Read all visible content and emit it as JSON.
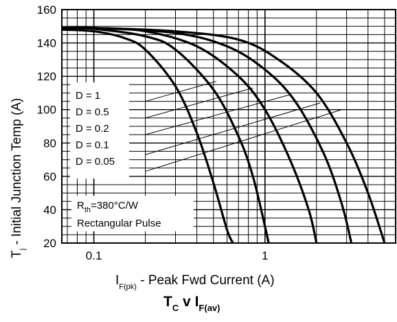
{
  "chart_data": {
    "type": "line",
    "x_scale": "log",
    "xlim": [
      0.065,
      5.8
    ],
    "ylim": [
      20,
      160
    ],
    "grid": true,
    "x_ticks": [
      {
        "value": 0.1,
        "label": "0.1"
      },
      {
        "value": 1,
        "label": "1"
      }
    ],
    "y_ticks": [
      {
        "value": 20,
        "label": "20"
      },
      {
        "value": 40,
        "label": "40"
      },
      {
        "value": 60,
        "label": "60"
      },
      {
        "value": 80,
        "label": "80"
      },
      {
        "value": 100,
        "label": "100"
      },
      {
        "value": 120,
        "label": "120"
      },
      {
        "value": 140,
        "label": "140"
      },
      {
        "value": 160,
        "label": "160"
      }
    ],
    "ylabel": {
      "main": "T",
      "sub": "j",
      "rest": " - Initial Junction Temp (A)"
    },
    "xlabel": {
      "main": "I",
      "sub": "F(pk)",
      "rest": " - Peak Fwd Current (A)"
    },
    "caption": {
      "a": "T",
      "a_sub": "C",
      "mid": " v ",
      "b": "I",
      "b_sub": "F(av)"
    },
    "legend": [
      {
        "label": "D = 1"
      },
      {
        "label": "D = 0.5"
      },
      {
        "label": "D = 0.2"
      },
      {
        "label": "D = 0.1"
      },
      {
        "label": "D = 0.05"
      }
    ],
    "note": {
      "line1_main": "R",
      "line1_sub": "th",
      "line1_rest": "=380°C/W",
      "line2": "Rectangular Pulse"
    },
    "series": [
      {
        "x": [
          0.065,
          0.1,
          0.15,
          0.2,
          0.3,
          0.4,
          0.5,
          0.6,
          0.65
        ],
        "y": [
          148,
          147,
          143,
          136,
          114,
          86,
          56,
          28,
          20
        ]
      },
      {
        "x": [
          0.065,
          0.1,
          0.2,
          0.3,
          0.5,
          0.7,
          0.85,
          1.0,
          1.05
        ],
        "y": [
          149,
          148.5,
          144,
          136,
          112,
          84,
          60,
          30,
          20
        ]
      },
      {
        "x": [
          0.065,
          0.1,
          0.2,
          0.4,
          0.7,
          1.0,
          1.4,
          1.8,
          2.0
        ],
        "y": [
          149,
          149,
          147,
          138,
          120,
          100,
          70,
          40,
          20
        ]
      },
      {
        "x": [
          0.065,
          0.1,
          0.3,
          0.6,
          1.0,
          1.5,
          2.2,
          2.8,
          3.2
        ],
        "y": [
          149,
          149,
          146,
          138,
          124,
          105,
          74,
          44,
          20
        ]
      },
      {
        "x": [
          0.065,
          0.1,
          0.3,
          0.7,
          1.2,
          2.0,
          3.0,
          4.0,
          5.0
        ],
        "y": [
          149,
          149,
          147,
          142,
          130,
          110,
          80,
          50,
          20
        ]
      }
    ]
  }
}
